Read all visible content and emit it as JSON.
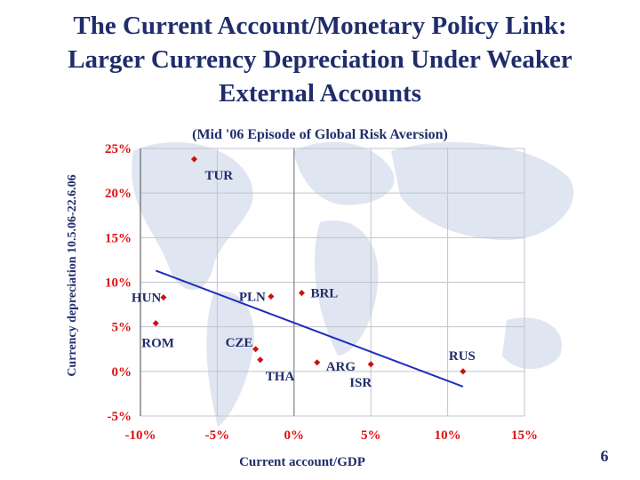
{
  "slide": {
    "title_lines": [
      "The Current Account/Monetary Policy Link:",
      "Larger Currency Depreciation Under Weaker",
      "External Accounts"
    ],
    "page_number": "6"
  },
  "colors": {
    "title": "#1f2d6b",
    "points": "#cc1111",
    "trendline": "#1f2dbf",
    "ticks": "#dd1111"
  },
  "chart_data": {
    "type": "scatter",
    "title": "(Mid '06 Episode of Global Risk Aversion)",
    "xlabel": "Current account/GDP",
    "ylabel": "Currency depreciation 10.5.06-22.6.06",
    "xlim": [
      -10,
      15
    ],
    "ylim": [
      -5,
      25
    ],
    "x_ticks": [
      "-10%",
      "-5%",
      "0%",
      "5%",
      "10%",
      "15%"
    ],
    "y_ticks": [
      "25%",
      "20%",
      "15%",
      "10%",
      "5%",
      "0%",
      "-5%"
    ],
    "grid": true,
    "points": [
      {
        "label": "TUR",
        "x": -6.5,
        "y": 23.8
      },
      {
        "label": "HUN",
        "x": -8.5,
        "y": 8.3
      },
      {
        "label": "PLN",
        "x": -1.5,
        "y": 8.4
      },
      {
        "label": "BRL",
        "x": 0.5,
        "y": 8.8
      },
      {
        "label": "ROM",
        "x": -9.0,
        "y": 5.4
      },
      {
        "label": "CZE",
        "x": -2.5,
        "y": 2.5
      },
      {
        "label": "THA",
        "x": -2.2,
        "y": 1.3
      },
      {
        "label": "ARG",
        "x": 1.5,
        "y": 1.0
      },
      {
        "label": "ISR",
        "x": 5.0,
        "y": 0.8
      },
      {
        "label": "RUS",
        "x": 11.0,
        "y": 0.0
      }
    ],
    "trendline": {
      "x": [
        -9,
        11
      ],
      "y": [
        11.3,
        -1.7
      ]
    }
  }
}
